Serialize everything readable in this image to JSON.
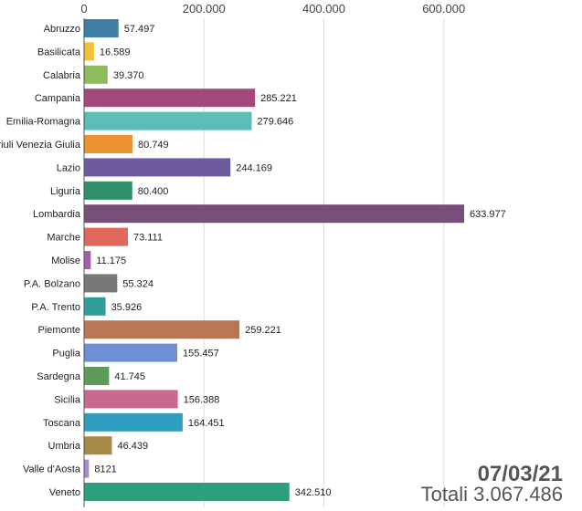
{
  "chart_data": {
    "type": "bar",
    "orientation": "horizontal",
    "categories": [
      "Abruzzo",
      "Basilicata",
      "Calabria",
      "Campania",
      "Emilia-Romagna",
      "Friuli Venezia Giulia",
      "Lazio",
      "Liguria",
      "Lombardia",
      "Marche",
      "Molise",
      "P.A. Bolzano",
      "P.A. Trento",
      "Piemonte",
      "Puglia",
      "Sardegna",
      "Sicilia",
      "Toscana",
      "Umbria",
      "Valle d'Aosta",
      "Veneto"
    ],
    "values": [
      57497,
      16589,
      39370,
      285221,
      279646,
      80749,
      244169,
      80400,
      633977,
      73111,
      11175,
      55324,
      35926,
      259221,
      155457,
      41745,
      156388,
      164451,
      46439,
      8121,
      342510
    ],
    "value_labels": [
      "57.497",
      "16.589",
      "39.370",
      "285.221",
      "279.646",
      "80.749",
      "244.169",
      "80.400",
      "633.977",
      "73.111",
      "11.175",
      "55.324",
      "35.926",
      "259.221",
      "155.457",
      "41.745",
      "156.388",
      "164.451",
      "46.439",
      "8121",
      "342.510"
    ],
    "colors": [
      "#3f7ea6",
      "#f2c035",
      "#8bbd5c",
      "#a3497b",
      "#5bbcb8",
      "#eb9130",
      "#6d5a9e",
      "#2f8f6b",
      "#7a4e7a",
      "#e0695c",
      "#a25ea8",
      "#787878",
      "#2f9e9a",
      "#b87652",
      "#6e8fd4",
      "#5e9a58",
      "#c86a8d",
      "#2f9dbf",
      "#a68a45",
      "#a78ad1",
      "#2e9e7d"
    ],
    "ticks": [
      0,
      200000,
      400000,
      600000
    ],
    "tick_labels": [
      "0",
      "200.000",
      "400.000",
      "600.000"
    ],
    "xlim": [
      0,
      633977
    ],
    "grid": true,
    "title": "",
    "xlabel": "",
    "ylabel": ""
  },
  "overlay": {
    "date": "07/03/21",
    "total": "Totali 3.067.486"
  }
}
